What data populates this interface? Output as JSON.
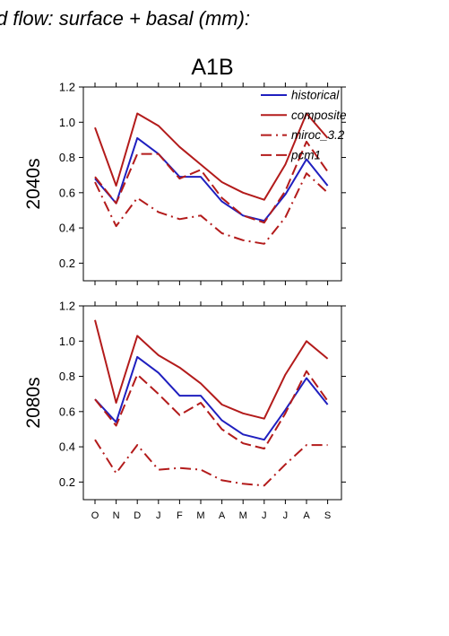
{
  "figure": {
    "title": "d flow: surface + basal (mm):",
    "scenario": "A1B",
    "months": [
      "O",
      "N",
      "D",
      "J",
      "F",
      "M",
      "A",
      "M",
      "J",
      "J",
      "A",
      "S"
    ]
  },
  "colors": {
    "historical": "#1f1fbf",
    "composite": "#b31b1b",
    "miroc": "#b31b1b",
    "pcm1": "#b31b1b",
    "axis": "#000000"
  },
  "chart_data": [
    {
      "type": "line",
      "panel_label": "2040s",
      "categories": [
        "O",
        "N",
        "D",
        "J",
        "F",
        "M",
        "A",
        "M",
        "J",
        "J",
        "A",
        "S"
      ],
      "ylim": [
        0.1,
        1.2
      ],
      "yticks": [
        0.2,
        0.4,
        0.6,
        0.8,
        1.0,
        1.2
      ],
      "legend_position": "top-right",
      "series": [
        {
          "name": "historical",
          "style": "solid",
          "color": "#1f1fbf",
          "values": [
            0.68,
            0.54,
            0.91,
            0.82,
            0.69,
            0.69,
            0.55,
            0.47,
            0.44,
            0.59,
            0.79,
            0.64
          ]
        },
        {
          "name": "composite",
          "style": "solid",
          "color": "#b31b1b",
          "values": [
            0.97,
            0.64,
            1.05,
            0.98,
            0.86,
            0.76,
            0.66,
            0.6,
            0.56,
            0.76,
            1.05,
            0.91
          ]
        },
        {
          "name": "miroc_3.2",
          "style": "dashdot",
          "color": "#b31b1b",
          "values": [
            0.66,
            0.41,
            0.57,
            0.49,
            0.45,
            0.47,
            0.37,
            0.33,
            0.31,
            0.46,
            0.71,
            0.6
          ]
        },
        {
          "name": "pcm1",
          "style": "dashed",
          "color": "#b31b1b",
          "values": [
            0.69,
            0.54,
            0.82,
            0.82,
            0.68,
            0.73,
            0.57,
            0.47,
            0.43,
            0.61,
            0.89,
            0.72
          ]
        }
      ]
    },
    {
      "type": "line",
      "panel_label": "2080s",
      "categories": [
        "O",
        "N",
        "D",
        "J",
        "F",
        "M",
        "A",
        "M",
        "J",
        "J",
        "A",
        "S"
      ],
      "ylim": [
        0.1,
        1.2
      ],
      "yticks": [
        0.2,
        0.4,
        0.6,
        0.8,
        1.0,
        1.2
      ],
      "series": [
        {
          "name": "historical",
          "style": "solid",
          "color": "#1f1fbf",
          "values": [
            0.67,
            0.54,
            0.91,
            0.82,
            0.69,
            0.69,
            0.55,
            0.47,
            0.44,
            0.61,
            0.79,
            0.64
          ]
        },
        {
          "name": "composite",
          "style": "solid",
          "color": "#b31b1b",
          "values": [
            1.12,
            0.65,
            1.03,
            0.92,
            0.85,
            0.76,
            0.64,
            0.59,
            0.56,
            0.81,
            1.0,
            0.9
          ]
        },
        {
          "name": "miroc_3.2",
          "style": "dashdot",
          "color": "#b31b1b",
          "values": [
            0.44,
            0.25,
            0.41,
            0.27,
            0.28,
            0.27,
            0.21,
            0.19,
            0.18,
            0.3,
            0.41,
            0.41
          ]
        },
        {
          "name": "pcm1",
          "style": "dashed",
          "color": "#b31b1b",
          "values": [
            0.67,
            0.52,
            0.81,
            0.7,
            0.58,
            0.65,
            0.5,
            0.42,
            0.39,
            0.59,
            0.83,
            0.66
          ]
        }
      ]
    }
  ],
  "legend": [
    {
      "label": "historical",
      "style": "solid",
      "color": "#1f1fbf"
    },
    {
      "label": "composite",
      "style": "solid",
      "color": "#b31b1b"
    },
    {
      "label": "miroc_3.2",
      "style": "dashdot",
      "color": "#b31b1b"
    },
    {
      "label": "pcm1",
      "style": "dashed",
      "color": "#b31b1b"
    }
  ]
}
